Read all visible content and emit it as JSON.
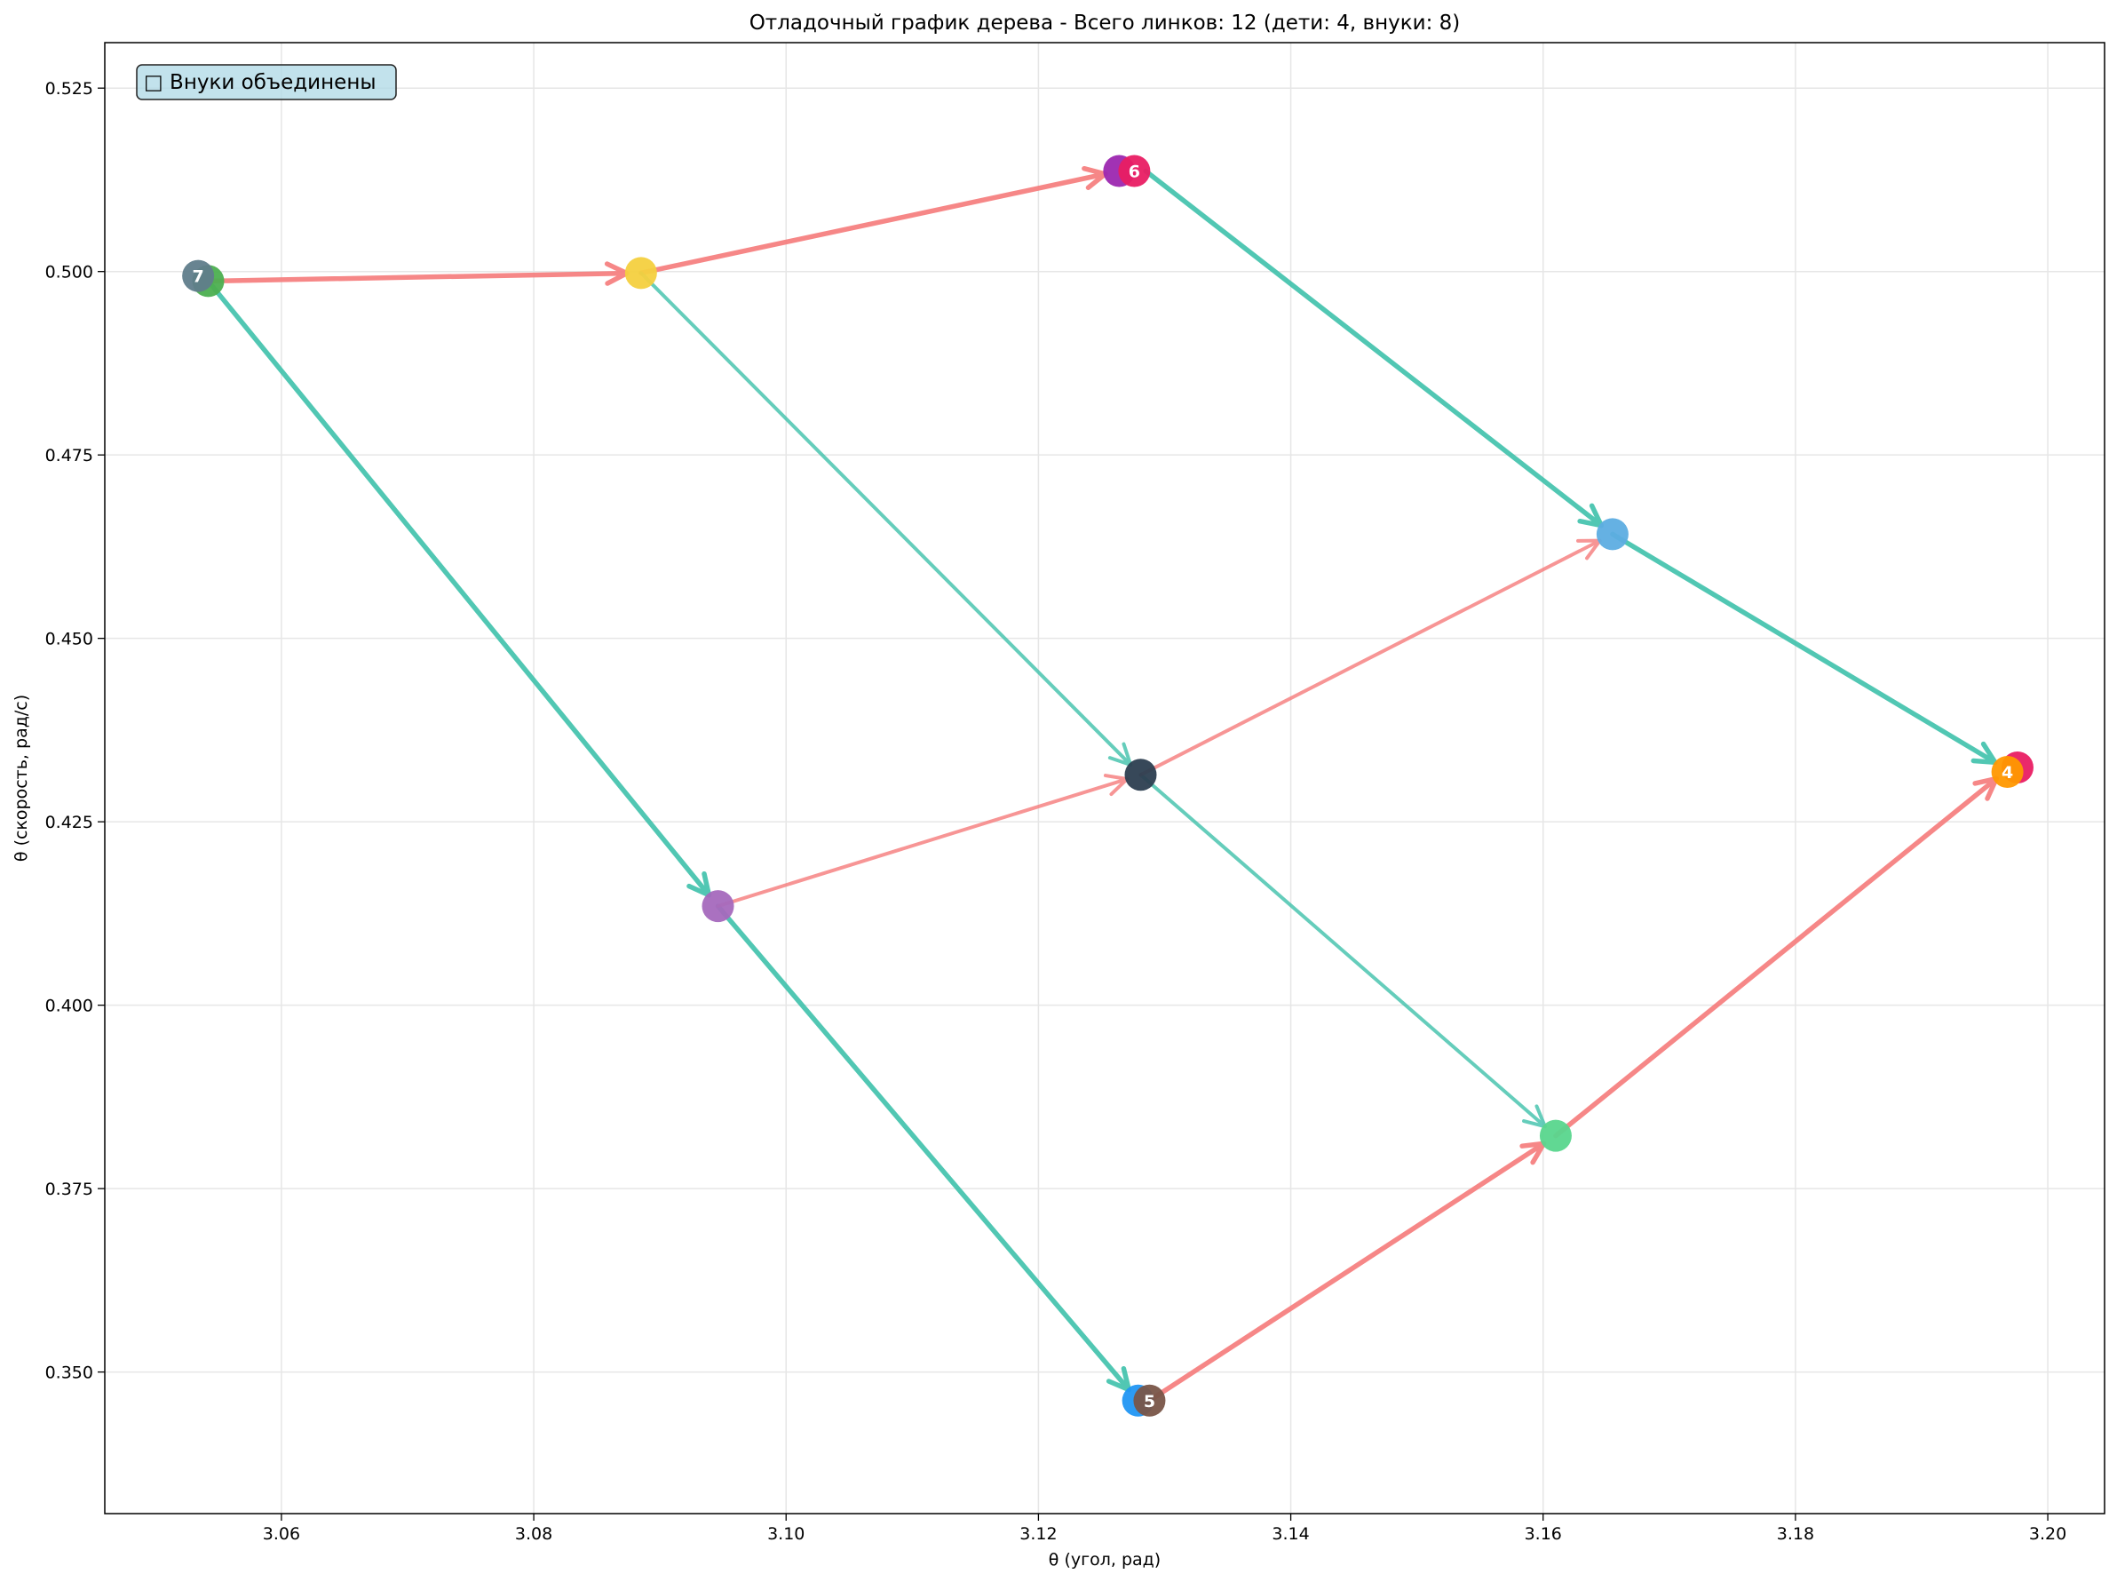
{
  "chart_data": {
    "type": "scatter",
    "title": "Отладочный график дерева - Всего линков: 12 (дети: 4, внуки: 8)",
    "xlabel": "θ (угол, рад)",
    "ylabel": "θ (скорость, рад/с)",
    "xlim": [
      3.046,
      3.2045
    ],
    "ylim": [
      0.3307,
      0.5312
    ],
    "xticks": [
      "3.06",
      "3.08",
      "3.10",
      "3.12",
      "3.14",
      "3.16",
      "3.18",
      "3.20"
    ],
    "xtick_values": [
      3.06,
      3.08,
      3.1,
      3.12,
      3.14,
      3.16,
      3.18,
      3.2
    ],
    "yticks": [
      "0.350",
      "0.375",
      "0.400",
      "0.425",
      "0.450",
      "0.475",
      "0.500",
      "0.525"
    ],
    "ytick_values": [
      0.35,
      0.375,
      0.4,
      0.425,
      0.45,
      0.475,
      0.5,
      0.525
    ],
    "grid": true,
    "legend_text": "□ Внуки объединены",
    "legend_placement": "top-left",
    "edge_colors": {
      "red": "#f67b7b",
      "teal": "#3fc1ab"
    },
    "links": [
      {
        "from": [
          3.0542,
          0.4987
        ],
        "to": [
          3.0885,
          0.4998
        ],
        "color": "red",
        "width": 5.5
      },
      {
        "from": [
          3.0885,
          0.4998
        ],
        "to": [
          3.1264,
          0.5137
        ],
        "color": "red",
        "width": 5.5
      },
      {
        "from": [
          3.0542,
          0.4987
        ],
        "to": [
          3.0946,
          0.4135
        ],
        "color": "teal",
        "width": 5.5
      },
      {
        "from": [
          3.0946,
          0.4135
        ],
        "to": [
          3.1279,
          0.3461
        ],
        "color": "teal",
        "width": 5.5
      },
      {
        "from": [
          3.1285,
          0.5137
        ],
        "to": [
          3.1655,
          0.4642
        ],
        "color": "teal",
        "width": 5.5
      },
      {
        "from": [
          3.1655,
          0.4642
        ],
        "to": [
          3.1968,
          0.4321
        ],
        "color": "teal",
        "width": 5.5
      },
      {
        "from": [
          3.1288,
          0.3461
        ],
        "to": [
          3.161,
          0.3822
        ],
        "color": "red",
        "width": 5.5
      },
      {
        "from": [
          3.161,
          0.3822
        ],
        "to": [
          3.1968,
          0.4321
        ],
        "color": "red",
        "width": 5.5
      },
      {
        "from": [
          3.0885,
          0.4998
        ],
        "to": [
          3.1281,
          0.4314
        ],
        "color": "teal",
        "width": 4
      },
      {
        "from": [
          3.1281,
          0.4314
        ],
        "to": [
          3.161,
          0.3822
        ],
        "color": "teal",
        "width": 4
      },
      {
        "from": [
          3.0946,
          0.4135
        ],
        "to": [
          3.1281,
          0.4314
        ],
        "color": "red",
        "width": 4
      },
      {
        "from": [
          3.1281,
          0.4314
        ],
        "to": [
          3.1655,
          0.4642
        ],
        "color": "red",
        "width": 4
      }
    ],
    "nodes": [
      {
        "x": 3.0542,
        "y": 0.4987,
        "color": "#4caf50",
        "label": ""
      },
      {
        "x": 3.0534,
        "y": 0.4994,
        "color": "#607d8b",
        "label": "7"
      },
      {
        "x": 3.0885,
        "y": 0.4998,
        "color": "#f4d03f",
        "label": ""
      },
      {
        "x": 3.1264,
        "y": 0.5137,
        "color": "#9c27b0",
        "label": ""
      },
      {
        "x": 3.1276,
        "y": 0.5137,
        "color": "#e91e63",
        "label": "6"
      },
      {
        "x": 3.0946,
        "y": 0.4135,
        "color": "#a569bd",
        "label": ""
      },
      {
        "x": 3.1281,
        "y": 0.4314,
        "color": "#2c3e50",
        "label": ""
      },
      {
        "x": 3.1655,
        "y": 0.4642,
        "color": "#5dade2",
        "label": ""
      },
      {
        "x": 3.161,
        "y": 0.3822,
        "color": "#58d68d",
        "label": ""
      },
      {
        "x": 3.1279,
        "y": 0.3461,
        "color": "#2196f3",
        "label": ""
      },
      {
        "x": 3.1288,
        "y": 0.3461,
        "color": "#795548",
        "label": "5"
      },
      {
        "x": 3.1976,
        "y": 0.4324,
        "color": "#e91e63",
        "label": ""
      },
      {
        "x": 3.1968,
        "y": 0.4318,
        "color": "#ff9800",
        "label": "4"
      }
    ]
  }
}
